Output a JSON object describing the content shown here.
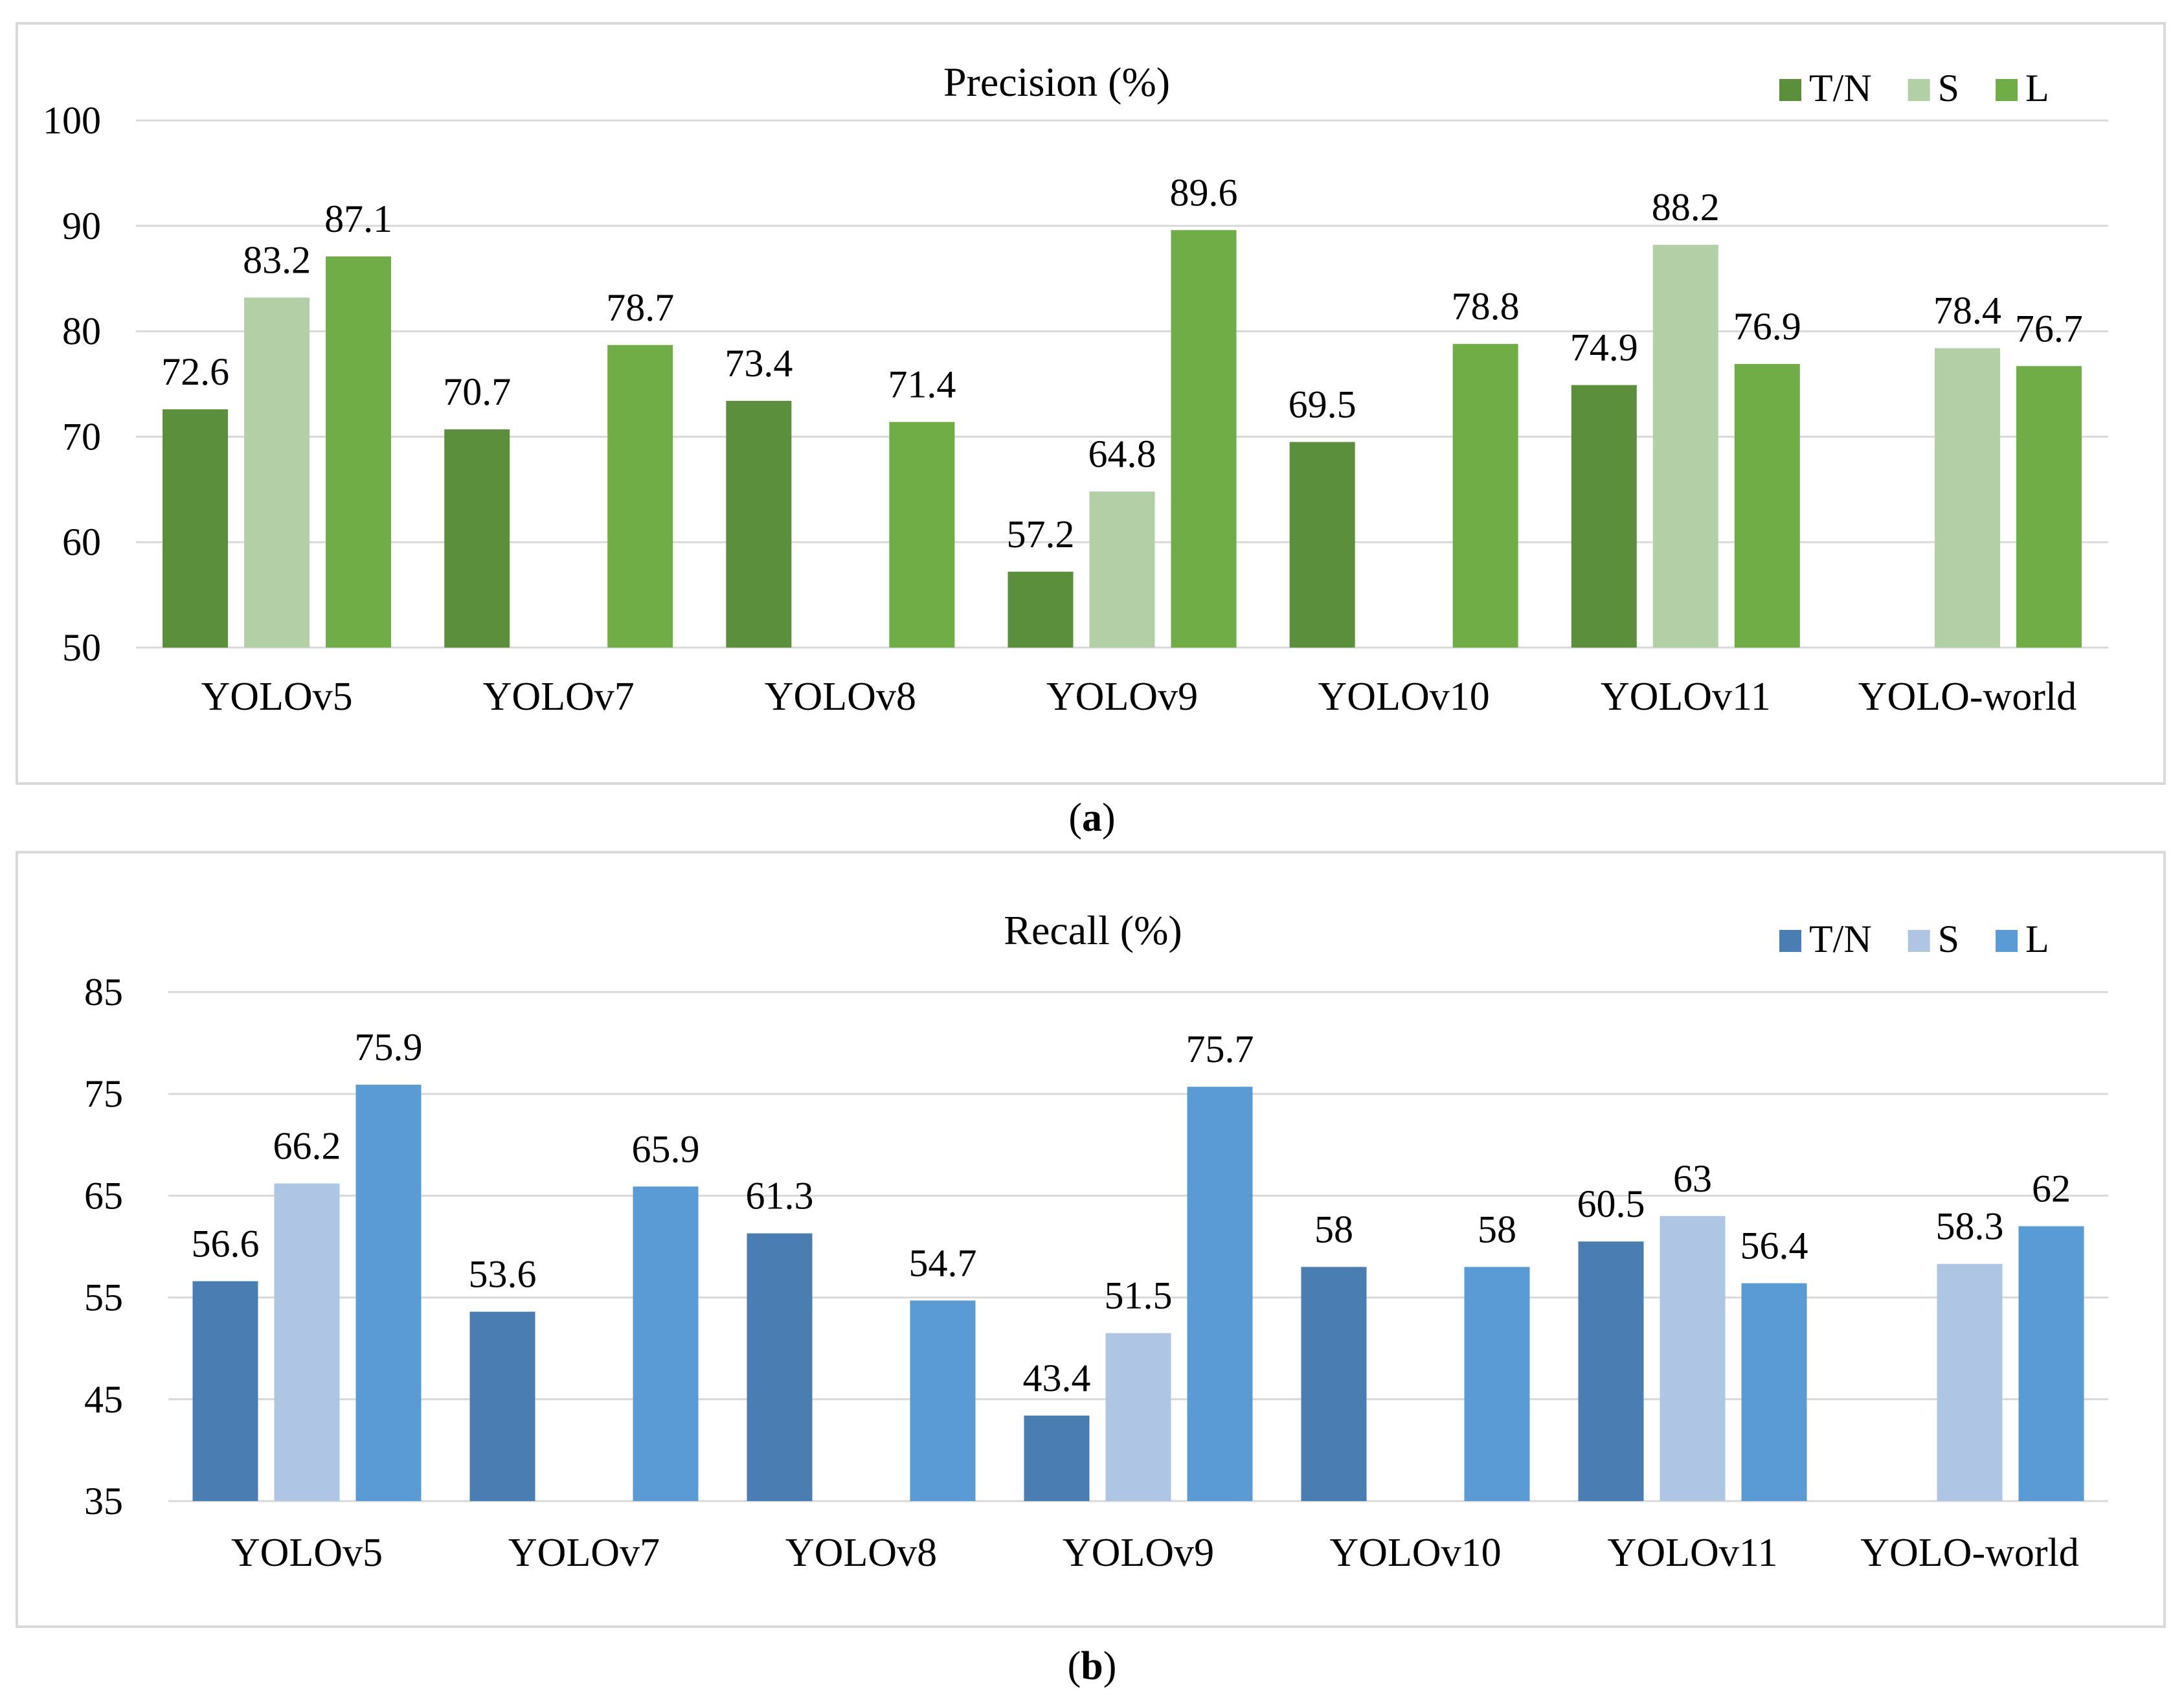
{
  "chart_data": [
    {
      "type": "bar",
      "title": "Precision (%)",
      "caption_letter": "a",
      "categories": [
        "YOLOv5",
        "YOLOv7",
        "YOLOv8",
        "YOLOv9",
        "YOLOv10",
        "YOLOv11",
        "YOLO-world"
      ],
      "series": [
        {
          "name": "T/N",
          "color": "#5b8f3b",
          "values": [
            72.6,
            70.7,
            73.4,
            57.2,
            69.5,
            74.9,
            null
          ]
        },
        {
          "name": "S",
          "color": "#b3cfa6",
          "values": [
            83.2,
            null,
            null,
            64.8,
            null,
            88.2,
            78.4
          ]
        },
        {
          "name": "L",
          "color": "#70ad47",
          "values": [
            87.1,
            78.7,
            71.4,
            89.6,
            78.8,
            76.9,
            76.7
          ]
        }
      ],
      "ylim": [
        50,
        100
      ],
      "yticks": [
        50,
        60,
        70,
        80,
        90,
        100
      ],
      "grid": true,
      "legend_position": "top-right"
    },
    {
      "type": "bar",
      "title": "Recall (%)",
      "caption_letter": "b",
      "categories": [
        "YOLOv5",
        "YOLOv7",
        "YOLOv8",
        "YOLOv9",
        "YOLOv10",
        "YOLOv11",
        "YOLO-world"
      ],
      "series": [
        {
          "name": "T/N",
          "color": "#4a7eb3",
          "values": [
            56.6,
            53.6,
            61.3,
            43.4,
            58,
            60.5,
            null
          ]
        },
        {
          "name": "S",
          "color": "#aec6e4",
          "values": [
            66.2,
            null,
            null,
            51.5,
            null,
            63,
            58.3
          ]
        },
        {
          "name": "L",
          "color": "#5b9bd5",
          "values": [
            75.9,
            65.9,
            54.7,
            75.7,
            58,
            56.4,
            62
          ]
        }
      ],
      "ylim": [
        35,
        85
      ],
      "yticks": [
        35,
        45,
        55,
        65,
        75,
        85
      ],
      "grid": true,
      "legend_position": "top-right"
    }
  ]
}
